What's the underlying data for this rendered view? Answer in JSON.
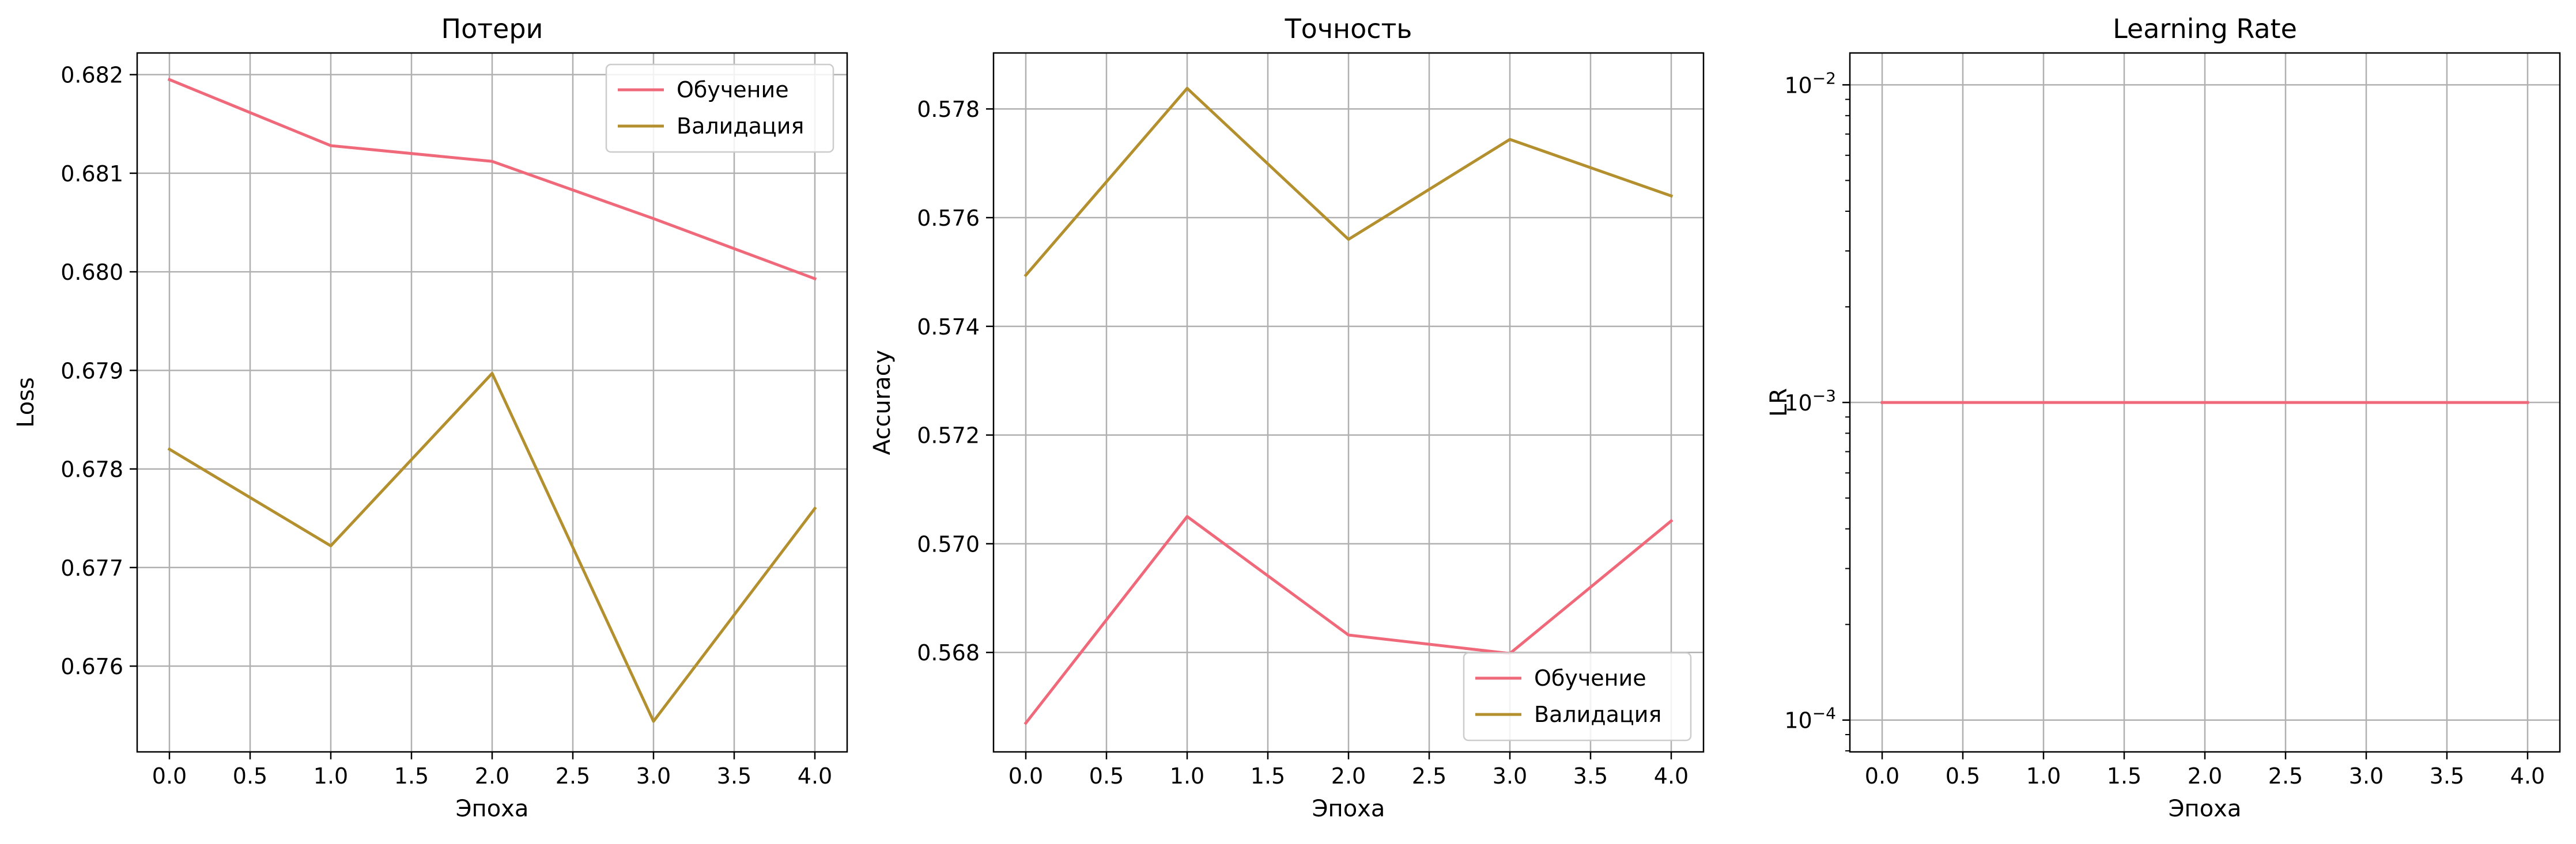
{
  "colors": {
    "train": "#f0697a",
    "val": "#b38f2e",
    "grid": "#b0b0b0"
  },
  "chart_data": [
    {
      "type": "line",
      "title": "Потери",
      "xlabel": "Эпоха",
      "ylabel": "Loss",
      "x": [
        0,
        1,
        2,
        3,
        4
      ],
      "xlim": [
        -0.2,
        4.2
      ],
      "ylim": [
        0.67513,
        0.68222
      ],
      "xticks": [
        0.0,
        0.5,
        1.0,
        1.5,
        2.0,
        2.5,
        3.0,
        3.5,
        4.0
      ],
      "xtick_labels": [
        "0.0",
        "0.5",
        "1.0",
        "1.5",
        "2.0",
        "2.5",
        "3.0",
        "3.5",
        "4.0"
      ],
      "yticks": [
        0.676,
        0.677,
        0.678,
        0.679,
        0.68,
        0.681,
        0.682
      ],
      "ytick_labels": [
        "0.676",
        "0.677",
        "0.678",
        "0.679",
        "0.680",
        "0.681",
        "0.682"
      ],
      "yscale": "linear",
      "grid": true,
      "legend": "upper right",
      "series": [
        {
          "name": "Обучение",
          "color_key": "train",
          "values": [
            0.68195,
            0.68128,
            0.68112,
            0.68054,
            0.67993
          ]
        },
        {
          "name": "Валидация",
          "color_key": "val",
          "values": [
            0.6782,
            0.67722,
            0.67897,
            0.67544,
            0.6776
          ]
        }
      ]
    },
    {
      "type": "line",
      "title": "Точность",
      "xlabel": "Эпоха",
      "ylabel": "Accuracy",
      "x": [
        0,
        1,
        2,
        3,
        4
      ],
      "xlim": [
        -0.2,
        4.2
      ],
      "ylim": [
        0.56617,
        0.57903
      ],
      "xticks": [
        0.0,
        0.5,
        1.0,
        1.5,
        2.0,
        2.5,
        3.0,
        3.5,
        4.0
      ],
      "xtick_labels": [
        "0.0",
        "0.5",
        "1.0",
        "1.5",
        "2.0",
        "2.5",
        "3.0",
        "3.5",
        "4.0"
      ],
      "yticks": [
        0.568,
        0.57,
        0.572,
        0.574,
        0.576,
        0.578
      ],
      "ytick_labels": [
        "0.568",
        "0.570",
        "0.572",
        "0.574",
        "0.576",
        "0.578"
      ],
      "yscale": "linear",
      "grid": true,
      "legend": "lower right",
      "series": [
        {
          "name": "Обучение",
          "color_key": "train",
          "values": [
            0.5667,
            0.5705,
            0.56832,
            0.56798,
            0.57042
          ]
        },
        {
          "name": "Валидация",
          "color_key": "val",
          "values": [
            0.57494,
            0.57838,
            0.5756,
            0.57744,
            0.5764
          ]
        }
      ]
    },
    {
      "type": "line",
      "title": "Learning Rate",
      "xlabel": "Эпоха",
      "ylabel": "LR",
      "x": [
        0,
        1,
        2,
        3,
        4
      ],
      "xlim": [
        -0.2,
        4.2
      ],
      "ylim": [
        7.94e-05,
        0.0126
      ],
      "xticks": [
        0.0,
        0.5,
        1.0,
        1.5,
        2.0,
        2.5,
        3.0,
        3.5,
        4.0
      ],
      "xtick_labels": [
        "0.0",
        "0.5",
        "1.0",
        "1.5",
        "2.0",
        "2.5",
        "3.0",
        "3.5",
        "4.0"
      ],
      "yticks": [
        0.0001,
        0.001,
        0.01
      ],
      "ytick_labels": [
        [
          "10",
          "−4"
        ],
        [
          "10",
          "−3"
        ],
        [
          "10",
          "−2"
        ]
      ],
      "yscale": "log",
      "grid": true,
      "legend": "none",
      "series": [
        {
          "name": "",
          "color_key": "train",
          "values": [
            0.001,
            0.001,
            0.001,
            0.001,
            0.001
          ]
        }
      ]
    }
  ]
}
